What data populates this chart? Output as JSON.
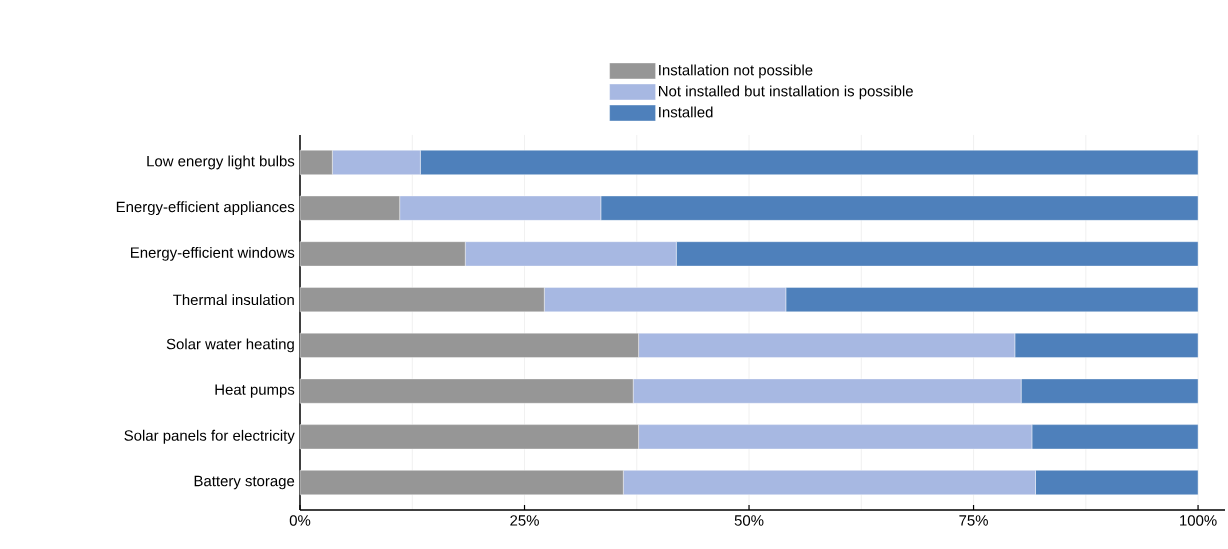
{
  "chart_data": {
    "type": "bar",
    "orientation": "horizontal",
    "stacked": true,
    "categories": [
      "Low energy light bulbs",
      "Energy-efficient appliances",
      "Energy-efficient windows",
      "Thermal insulation",
      "Solar water heating",
      "Heat pumps",
      "Solar panels for electricity",
      "Battery storage"
    ],
    "series": [
      {
        "name": "Installation not possible",
        "color": "#969696",
        "values": [
          3.6,
          11.1,
          18.4,
          27.2,
          37.7,
          37.1,
          37.7,
          36.0
        ]
      },
      {
        "name": "Not installed but installation is possible",
        "color": "#a7b8e2",
        "values": [
          9.8,
          22.4,
          23.5,
          26.9,
          41.9,
          43.2,
          43.8,
          45.9
        ]
      },
      {
        "name": "Installed",
        "color": "#4e80bb",
        "values": [
          86.6,
          66.5,
          58.1,
          45.9,
          20.4,
          19.7,
          18.5,
          18.1
        ]
      }
    ],
    "xlim": [
      0,
      103
    ],
    "xticks": [
      {
        "value": 0,
        "label": "0%"
      },
      {
        "value": 25,
        "label": "25%"
      },
      {
        "value": 50,
        "label": "50%"
      },
      {
        "value": 75,
        "label": "75%"
      },
      {
        "value": 100,
        "label": "100%"
      }
    ],
    "grid": "x",
    "legend": "top"
  }
}
